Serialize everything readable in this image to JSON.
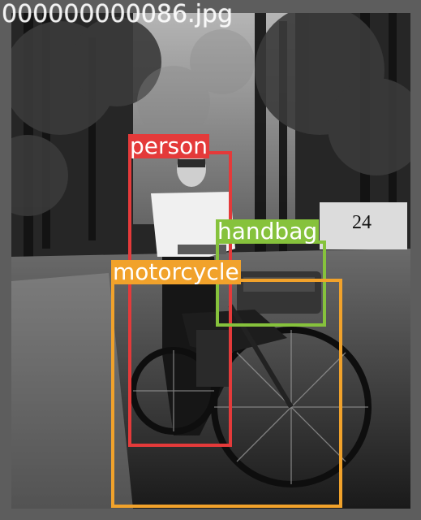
{
  "image": {
    "filename": "000000000086.jpg"
  },
  "detections": [
    {
      "label": "person",
      "color": "#e43a3a"
    },
    {
      "label": "handbag",
      "color": "#86c23c"
    },
    {
      "label": "motorcycle",
      "color": "#f1a22b"
    }
  ],
  "sign_text": "24"
}
